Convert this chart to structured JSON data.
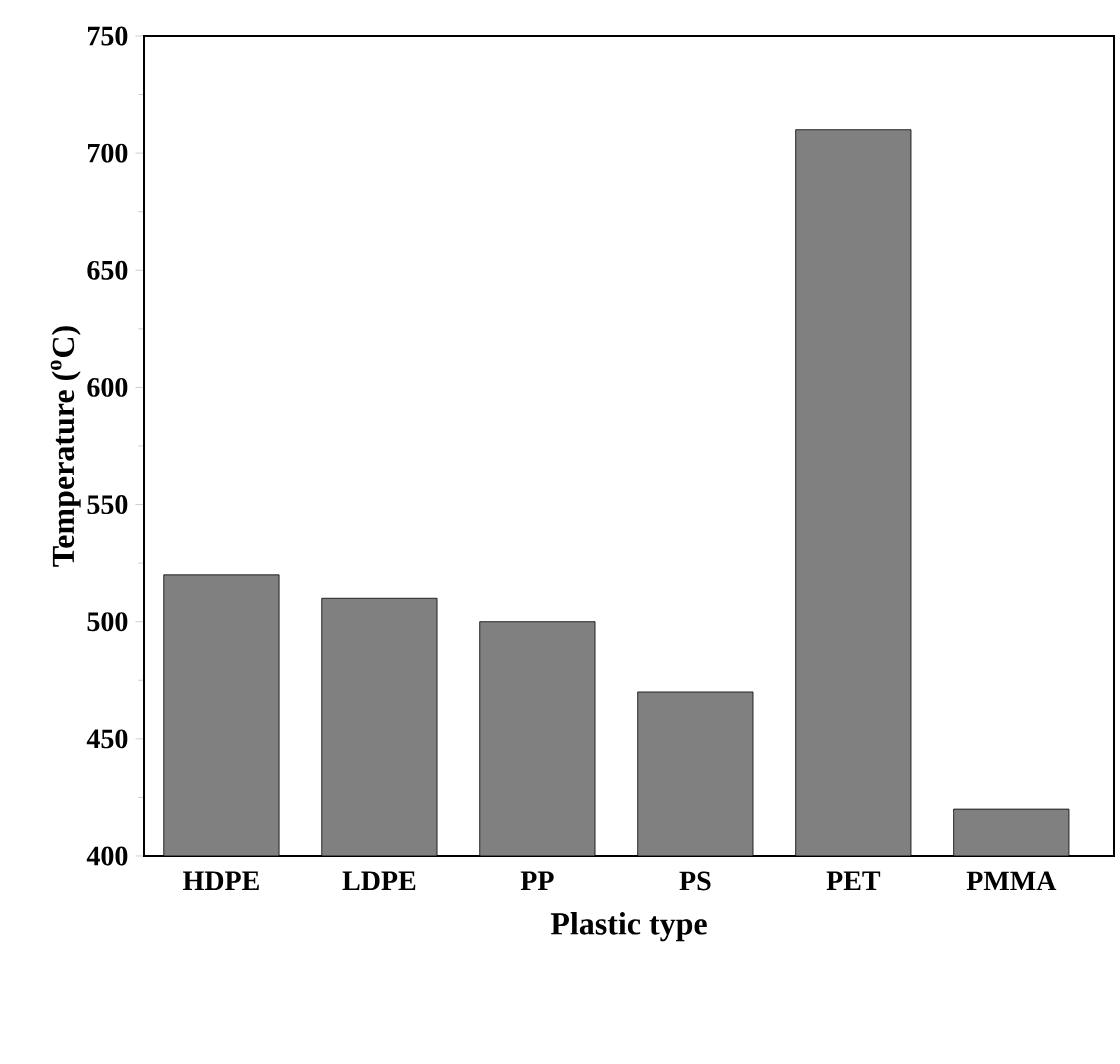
{
  "chart_data": {
    "type": "bar",
    "xlabel": "Plastic type",
    "ylabel": "Temperature ($^{o}$C)",
    "categories": [
      "HDPE",
      "LDPE",
      "PP",
      "PS",
      "PET",
      "PMMA"
    ],
    "values": [
      520,
      510,
      500,
      470,
      710,
      420
    ],
    "color": "#808080",
    "ylim": [
      400,
      750
    ],
    "yticks": [
      400,
      450,
      500,
      550,
      600,
      650,
      700,
      750
    ],
    "grid": false
  }
}
